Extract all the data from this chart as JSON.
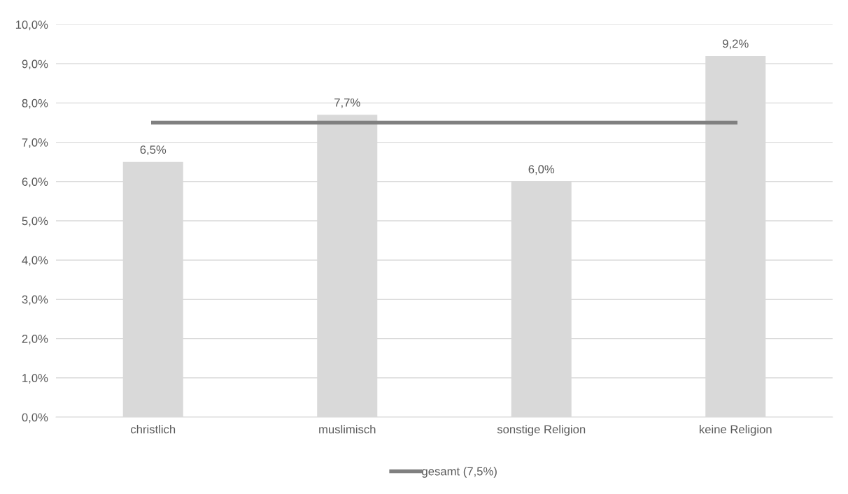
{
  "chart_data": {
    "type": "bar",
    "categories": [
      "christlich",
      "muslimisch",
      "sonstige Religion",
      "keine Religion"
    ],
    "series": [
      {
        "color": "#d9d9d9",
        "values": [
          6.5,
          7.7,
          6.0,
          9.2
        ],
        "value_labels": [
          "6,5%",
          "7,7%",
          "6,0%",
          "9,2%"
        ]
      },
      {
        "type": "line",
        "name": "gesamt (7,5%)",
        "color": "#808080",
        "values": [
          7.5,
          7.5,
          7.5,
          7.5
        ]
      }
    ],
    "ylim": [
      0,
      10
    ],
    "yticks": [
      {
        "value": 0,
        "label": "0,0%"
      },
      {
        "value": 1,
        "label": "1,0%"
      },
      {
        "value": 2,
        "label": "2,0%"
      },
      {
        "value": 3,
        "label": "3,0%"
      },
      {
        "value": 4,
        "label": "4,0%"
      },
      {
        "value": 5,
        "label": "5,0%"
      },
      {
        "value": 6,
        "label": "6,0%"
      },
      {
        "value": 7,
        "label": "7,0%"
      },
      {
        "value": 8,
        "label": "8,0%"
      },
      {
        "value": 9,
        "label": "9,0%"
      },
      {
        "value": 10,
        "label": "10,0%"
      }
    ],
    "grid": "y",
    "legend": "bottom",
    "marker": "none",
    "line_style": "solid"
  }
}
